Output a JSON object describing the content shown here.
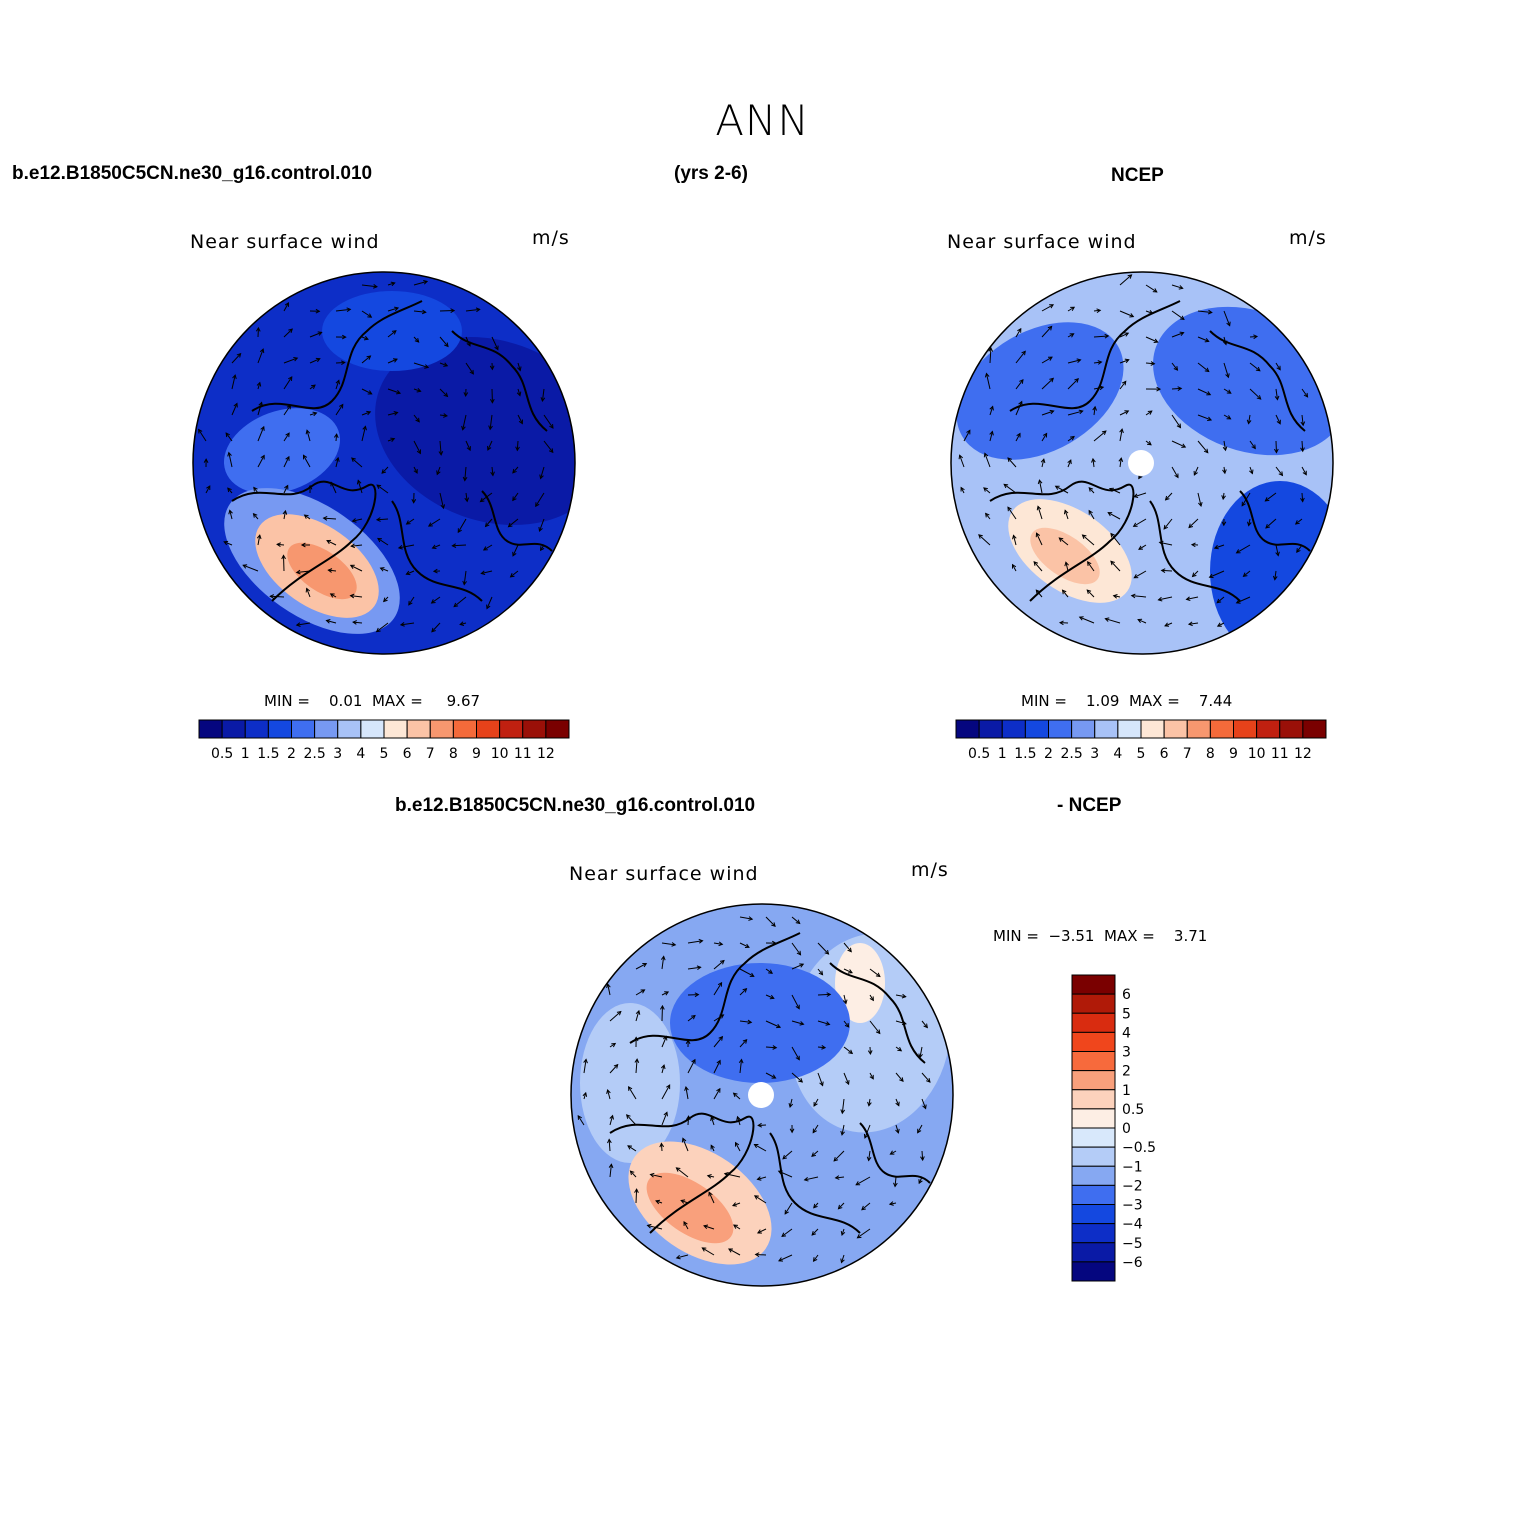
{
  "figure": {
    "title": "ANN",
    "header_case": "b.e12.B1850C5CN.ne30_g16.control.010",
    "header_years": "(yrs 2-6)",
    "header_obs": "NCEP",
    "diff_case": "b.e12.B1850C5CN.ne30_g16.control.010",
    "diff_obs": "- NCEP"
  },
  "panels": [
    {
      "id": "model",
      "title": "Near surface wind",
      "units": "m/s",
      "min_label": "MIN =",
      "min_value": "0.01",
      "max_label": "MAX =",
      "max_value": "9.67",
      "background_level": "1.5",
      "colorbar_labels": [
        "0.5",
        "1",
        "1.5",
        "2",
        "2.5",
        "3",
        "4",
        "5",
        "6",
        "7",
        "8",
        "9",
        "10",
        "11",
        "12"
      ],
      "colorbar_colors": [
        "#05067f",
        "#0a1aa6",
        "#0d2ec7",
        "#1448e0",
        "#3f6ef0",
        "#7799f2",
        "#a8c2f7",
        "#d6e6fb",
        "#fde7d6",
        "#fbc3a6",
        "#f7976f",
        "#f46a3a",
        "#e6421a",
        "#c02010",
        "#9a1008",
        "#7a0000"
      ]
    },
    {
      "id": "obs",
      "title": "Near surface wind",
      "units": "m/s",
      "min_label": "MIN =",
      "min_value": "1.09",
      "max_label": "MAX =",
      "max_value": "7.44",
      "background_level": "3",
      "colorbar_labels": [
        "0.5",
        "1",
        "1.5",
        "2",
        "2.5",
        "3",
        "4",
        "5",
        "6",
        "7",
        "8",
        "9",
        "10",
        "11",
        "12"
      ],
      "colorbar_colors": [
        "#05067f",
        "#0a1aa6",
        "#0d2ec7",
        "#1448e0",
        "#3f6ef0",
        "#7799f2",
        "#a8c2f7",
        "#d6e6fb",
        "#fde7d6",
        "#fbc3a6",
        "#f7976f",
        "#f46a3a",
        "#e6421a",
        "#c02010",
        "#9a1008",
        "#7a0000"
      ]
    },
    {
      "id": "diff",
      "title": "Near surface wind",
      "units": "m/s",
      "min_label": "MIN =",
      "min_value": "−3.51",
      "max_label": "MAX =",
      "max_value": "3.71",
      "background_level": "−1",
      "colorbar_labels": [
        "6",
        "5",
        "4",
        "3",
        "2",
        "1",
        "0.5",
        "0",
        "−0.5",
        "−1",
        "−2",
        "−3",
        "−4",
        "−5",
        "−6"
      ],
      "colorbar_colors": [
        "#7a0000",
        "#b01a08",
        "#d92c10",
        "#f0461c",
        "#f76a3c",
        "#f9a07c",
        "#fcd2bc",
        "#fdeee4",
        "#d8e8fb",
        "#b4ccf7",
        "#86a8f2",
        "#3f6ef0",
        "#1448e0",
        "#0d2ec7",
        "#0a1aa6",
        "#05067f"
      ]
    }
  ],
  "colors": {
    "model_background": "#0d2ec7",
    "obs_background": "#a8c2f7",
    "diff_background": "#86a8f2",
    "warm_region": "#f9a07c"
  }
}
